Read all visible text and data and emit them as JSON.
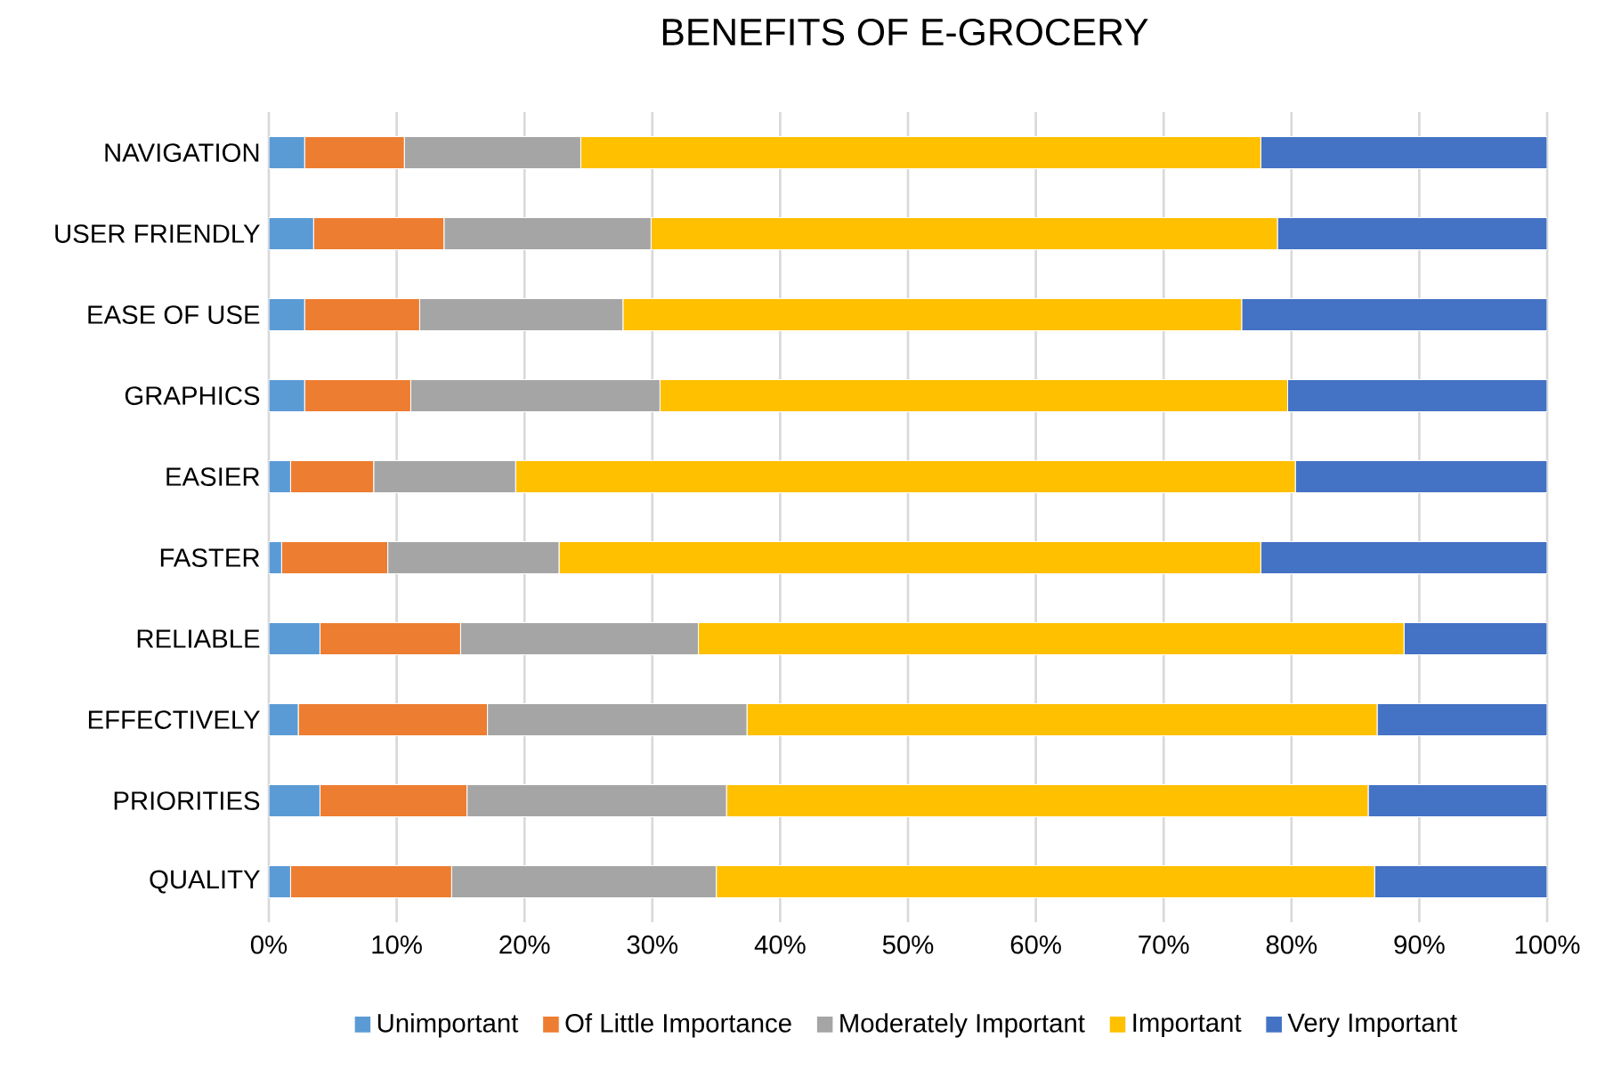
{
  "chart_data": {
    "type": "bar",
    "orientation": "horizontal",
    "stacked": true,
    "title": "BENEFITS OF E-GROCERY",
    "categories": [
      "NAVIGATION",
      "USER FRIENDLY",
      "EASE OF USE",
      "GRAPHICS",
      "EASIER",
      "FASTER",
      "RELIABLE",
      "EFFECTIVELY",
      "PRIORITIES",
      "QUALITY"
    ],
    "series": [
      {
        "name": "Unimportant",
        "color": "#5b9bd5",
        "values": [
          2.8,
          3.5,
          2.8,
          2.8,
          1.7,
          1.0,
          4.0,
          2.3,
          4.0,
          1.7
        ]
      },
      {
        "name": "Of Little Importance",
        "color": "#ed7d31",
        "values": [
          7.8,
          10.2,
          9.0,
          8.3,
          6.5,
          8.3,
          11.0,
          14.8,
          11.5,
          12.6
        ]
      },
      {
        "name": "Moderately Important",
        "color": "#a5a5a5",
        "values": [
          13.8,
          16.2,
          15.9,
          19.5,
          11.1,
          13.4,
          18.6,
          20.3,
          20.3,
          20.7
        ]
      },
      {
        "name": "Important",
        "color": "#ffc000",
        "values": [
          53.2,
          49.0,
          48.4,
          49.1,
          61.0,
          54.9,
          55.2,
          49.3,
          50.2,
          51.5
        ]
      },
      {
        "name": "Very Important",
        "color": "#4472c4",
        "values": [
          22.4,
          21.1,
          23.9,
          20.3,
          19.7,
          22.4,
          11.2,
          13.3,
          14.0,
          13.5
        ]
      }
    ],
    "xlim": [
      0,
      100
    ],
    "xticks": [
      {
        "value": 0,
        "label": "0%"
      },
      {
        "value": 10,
        "label": "10%"
      },
      {
        "value": 20,
        "label": "20%"
      },
      {
        "value": 30,
        "label": "30%"
      },
      {
        "value": 40,
        "label": "40%"
      },
      {
        "value": 50,
        "label": "50%"
      },
      {
        "value": 60,
        "label": "60%"
      },
      {
        "value": 70,
        "label": "70%"
      },
      {
        "value": 80,
        "label": "80%"
      },
      {
        "value": 90,
        "label": "90%"
      },
      {
        "value": 100,
        "label": "100%"
      }
    ],
    "grid": "x",
    "legend": "bottom"
  }
}
